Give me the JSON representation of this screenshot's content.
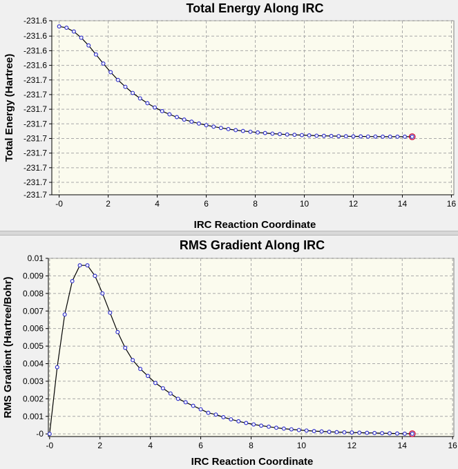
{
  "chart_data": [
    {
      "type": "line",
      "title": "Total Energy Along IRC",
      "xlabel": "IRC Reaction Coordinate",
      "ylabel": "Total Energy (Hartree)",
      "xlim": [
        -0.3,
        16.1
      ],
      "ylim": [
        -231.731,
        -231.612
      ],
      "xticks": [
        0,
        2,
        4,
        6,
        8,
        10,
        12,
        14,
        16
      ],
      "xtick_labels": [
        "-0",
        "2",
        "4",
        "6",
        "8",
        "10",
        "12",
        "14",
        "16"
      ],
      "ytick_values": [
        -231.612,
        -231.6225,
        -231.6325,
        -231.6425,
        -231.6525,
        -231.6625,
        -231.6725,
        -231.6825,
        -231.6925,
        -231.7025,
        -231.7125,
        -231.7225,
        -231.731
      ],
      "ytick_labels": [
        "-231.6",
        "-231.6",
        "-231.6",
        "-231.6",
        "-231.7",
        "-231.7",
        "-231.7",
        "-231.7",
        "-231.7",
        "-231.7",
        "-231.7",
        "-231.7",
        "-231.7"
      ],
      "grid": true,
      "colors": {
        "line": "#000000",
        "marker": "#3333cc",
        "highlight": "#cc0033",
        "plot_bg": "#fbfbee",
        "grid": "#a8a8a8"
      },
      "series": [
        {
          "name": "Total Energy",
          "x": [
            0,
            0.3,
            0.6,
            0.9,
            1.2,
            1.5,
            1.8,
            2.1,
            2.4,
            2.7,
            3.0,
            3.3,
            3.6,
            3.9,
            4.2,
            4.5,
            4.8,
            5.1,
            5.4,
            5.7,
            6.0,
            6.3,
            6.6,
            6.9,
            7.2,
            7.5,
            7.8,
            8.1,
            8.4,
            8.7,
            9.0,
            9.3,
            9.6,
            9.9,
            10.2,
            10.5,
            10.8,
            11.1,
            11.4,
            11.7,
            12.0,
            12.3,
            12.6,
            12.9,
            13.2,
            13.5,
            13.8,
            14.1,
            14.4
          ],
          "values": [
            -231.6159,
            -231.6168,
            -231.6194,
            -231.6236,
            -231.6289,
            -231.6351,
            -231.6413,
            -231.6472,
            -231.6525,
            -231.6572,
            -231.6614,
            -231.6651,
            -231.6684,
            -231.6713,
            -231.6738,
            -231.676,
            -231.6779,
            -231.6796,
            -231.681,
            -231.6823,
            -231.6834,
            -231.6844,
            -231.6853,
            -231.6861,
            -231.6868,
            -231.6874,
            -231.6879,
            -231.6884,
            -231.6888,
            -231.6892,
            -231.6895,
            -231.6898,
            -231.69,
            -231.6902,
            -231.6904,
            -231.6906,
            -231.6907,
            -231.6908,
            -231.6909,
            -231.691,
            -231.6911,
            -231.6911,
            -231.6912,
            -231.6912,
            -231.6913,
            -231.6913,
            -231.6913,
            -231.6913,
            -231.6913
          ]
        }
      ]
    },
    {
      "type": "line",
      "title": "RMS Gradient Along IRC",
      "xlabel": "IRC Reaction Coordinate",
      "ylabel": "RMS Gradient (Hartree/Bohr)",
      "xlim": [
        -0.05,
        16.05
      ],
      "ylim": [
        -0.00015,
        0.01
      ],
      "xticks": [
        0,
        2,
        4,
        6,
        8,
        10,
        12,
        14,
        16
      ],
      "xtick_labels": [
        "-0",
        "2",
        "4",
        "6",
        "8",
        "10",
        "12",
        "14",
        "16"
      ],
      "ytick_values": [
        0,
        0.001,
        0.002,
        0.003,
        0.004,
        0.005,
        0.006,
        0.007,
        0.008,
        0.009,
        0.01
      ],
      "ytick_labels": [
        "-0",
        "0.001",
        "0.002",
        "0.003",
        "0.004",
        "0.005",
        "0.006",
        "0.007",
        "0.008",
        "0.009",
        "0.01"
      ],
      "grid": true,
      "colors": {
        "line": "#000000",
        "marker": "#3333cc",
        "highlight": "#cc0033",
        "plot_bg": "#fbfbee",
        "grid": "#a8a8a8"
      },
      "series": [
        {
          "name": "RMS Gradient",
          "x": [
            0,
            0.3,
            0.6,
            0.9,
            1.2,
            1.5,
            1.8,
            2.1,
            2.4,
            2.7,
            3.0,
            3.3,
            3.6,
            3.9,
            4.2,
            4.5,
            4.8,
            5.1,
            5.4,
            5.7,
            6.0,
            6.3,
            6.6,
            6.9,
            7.2,
            7.5,
            7.8,
            8.1,
            8.4,
            8.7,
            9.0,
            9.3,
            9.6,
            9.9,
            10.2,
            10.5,
            10.8,
            11.1,
            11.4,
            11.7,
            12.0,
            12.3,
            12.6,
            12.9,
            13.2,
            13.5,
            13.8,
            14.1,
            14.4
          ],
          "values": [
            0.0,
            0.0038,
            0.0068,
            0.0087,
            0.0096,
            0.0096,
            0.009,
            0.008,
            0.0069,
            0.0058,
            0.0049,
            0.0042,
            0.0037,
            0.0033,
            0.0029,
            0.0026,
            0.0023,
            0.002,
            0.0018,
            0.0016,
            0.0014,
            0.0012,
            0.0011,
            0.00095,
            0.00083,
            0.00072,
            0.00062,
            0.00054,
            0.00047,
            0.00041,
            0.00035,
            0.0003,
            0.00026,
            0.00022,
            0.00019,
            0.00016,
            0.00014,
            0.00012,
            0.0001,
            9e-05,
            8e-05,
            7e-05,
            6e-05,
            5e-05,
            4e-05,
            3e-05,
            2e-05,
            1e-05,
            1e-05
          ]
        }
      ]
    }
  ]
}
